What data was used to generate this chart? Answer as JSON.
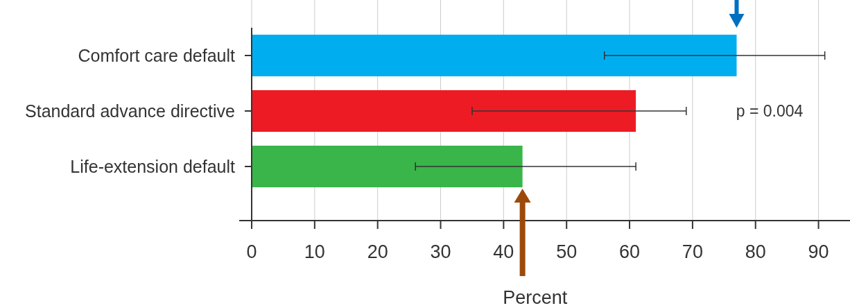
{
  "chart_data": {
    "type": "bar",
    "orientation": "horizontal",
    "categories": [
      "Comfort care default",
      "Standard advance directive",
      "Life-extension default"
    ],
    "values": [
      77,
      61,
      43
    ],
    "colors": [
      "#00aeef",
      "#ed1c24",
      "#39b54a"
    ],
    "errors": [
      [
        56,
        91
      ],
      [
        35,
        69
      ],
      [
        26,
        61
      ]
    ],
    "xlim": [
      0,
      95
    ],
    "xticks": [
      0,
      10,
      20,
      30,
      40,
      50,
      60,
      70,
      80,
      90
    ],
    "xlabel": "Percent",
    "grid": "x",
    "annotations": [
      "p = 0.004"
    ]
  }
}
